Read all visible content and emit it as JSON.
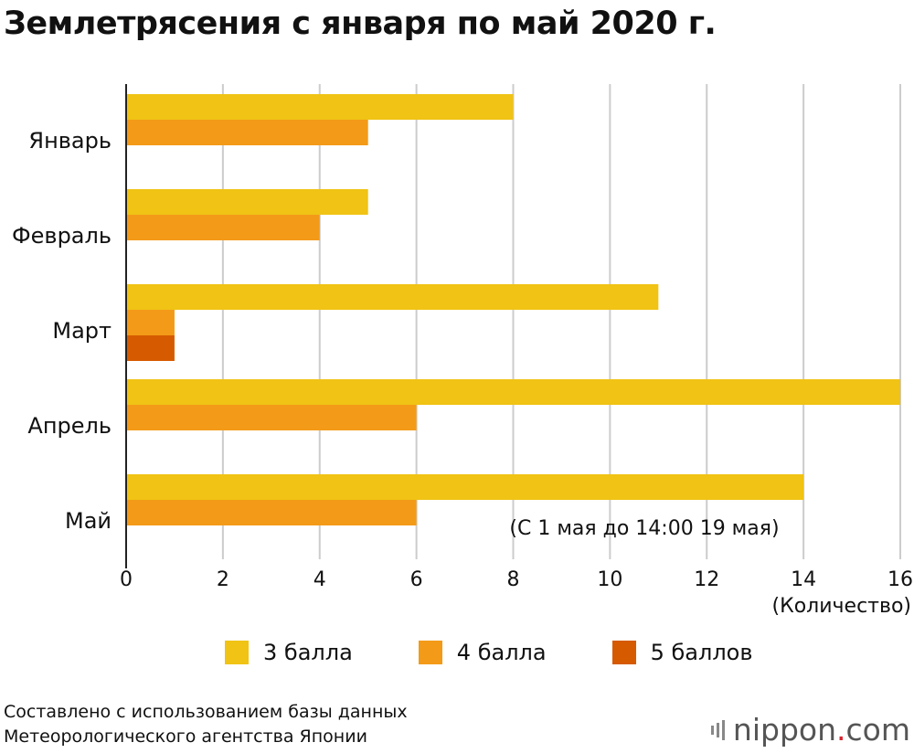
{
  "title": "Землетрясения с января по май 2020 г.",
  "chart_data": {
    "type": "bar",
    "orientation": "horizontal",
    "categories": [
      "Январь",
      "Февраль",
      "Март",
      "Апрель",
      "Май"
    ],
    "series": [
      {
        "name": "3 балла",
        "values": [
          8,
          5,
          11,
          16,
          14
        ],
        "color": "#f0c314"
      },
      {
        "name": "4 балла",
        "values": [
          5,
          4,
          1,
          6,
          6
        ],
        "color": "#f39a18"
      },
      {
        "name": "5 баллов",
        "values": [
          0,
          0,
          1,
          0,
          0
        ],
        "color": "#d65a00"
      }
    ],
    "xlim": [
      0,
      16
    ],
    "xticks": [
      0,
      2,
      4,
      6,
      8,
      10,
      12,
      14,
      16
    ],
    "xlabel": "(Количество)",
    "annotation": "(С 1 мая до 14:00 19 мая)",
    "grid": true,
    "legend_position": "bottom"
  },
  "source": {
    "line1": "Составлено с использованием базы данных",
    "line2": "Метеорологического агентства Японии"
  },
  "brand": {
    "name": "nippon",
    "dot": ".",
    "suffix": "com"
  }
}
